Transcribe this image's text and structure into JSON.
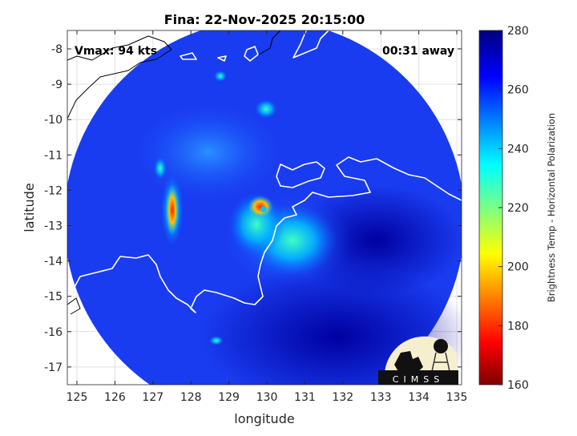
{
  "chart_data": {
    "type": "heatmap",
    "title": "Fina: 22-Nov-2025 20:15:00",
    "xlabel": "longitude",
    "ylabel": "latitude",
    "xlim": [
      124.75,
      135.1
    ],
    "ylim": [
      -17.5,
      -7.5
    ],
    "xticks": [
      "125",
      "126",
      "127",
      "128",
      "129",
      "130",
      "131",
      "132",
      "133",
      "134",
      "135"
    ],
    "yticks": [
      "-8",
      "-9",
      "-10",
      "-11",
      "-12",
      "-13",
      "-14",
      "-15",
      "-16",
      "-17"
    ],
    "grid": true,
    "annotations": {
      "vmax": "Vmax: 94 kts",
      "time_offset": "00:31 away"
    },
    "colorbar": {
      "label": "Brightness Temp - Horizontal Polarization",
      "range": [
        160,
        280
      ],
      "ticks": [
        "280",
        "260",
        "240",
        "220",
        "200",
        "180",
        "160"
      ],
      "colormap": [
        "#7f0000",
        "#ff0000",
        "#ffff00",
        "#00ffff",
        "#0000ff",
        "#00007f"
      ]
    },
    "storm_center": {
      "lon": 129.8,
      "lat": -12.5
    }
  },
  "logo": "CIMSS"
}
